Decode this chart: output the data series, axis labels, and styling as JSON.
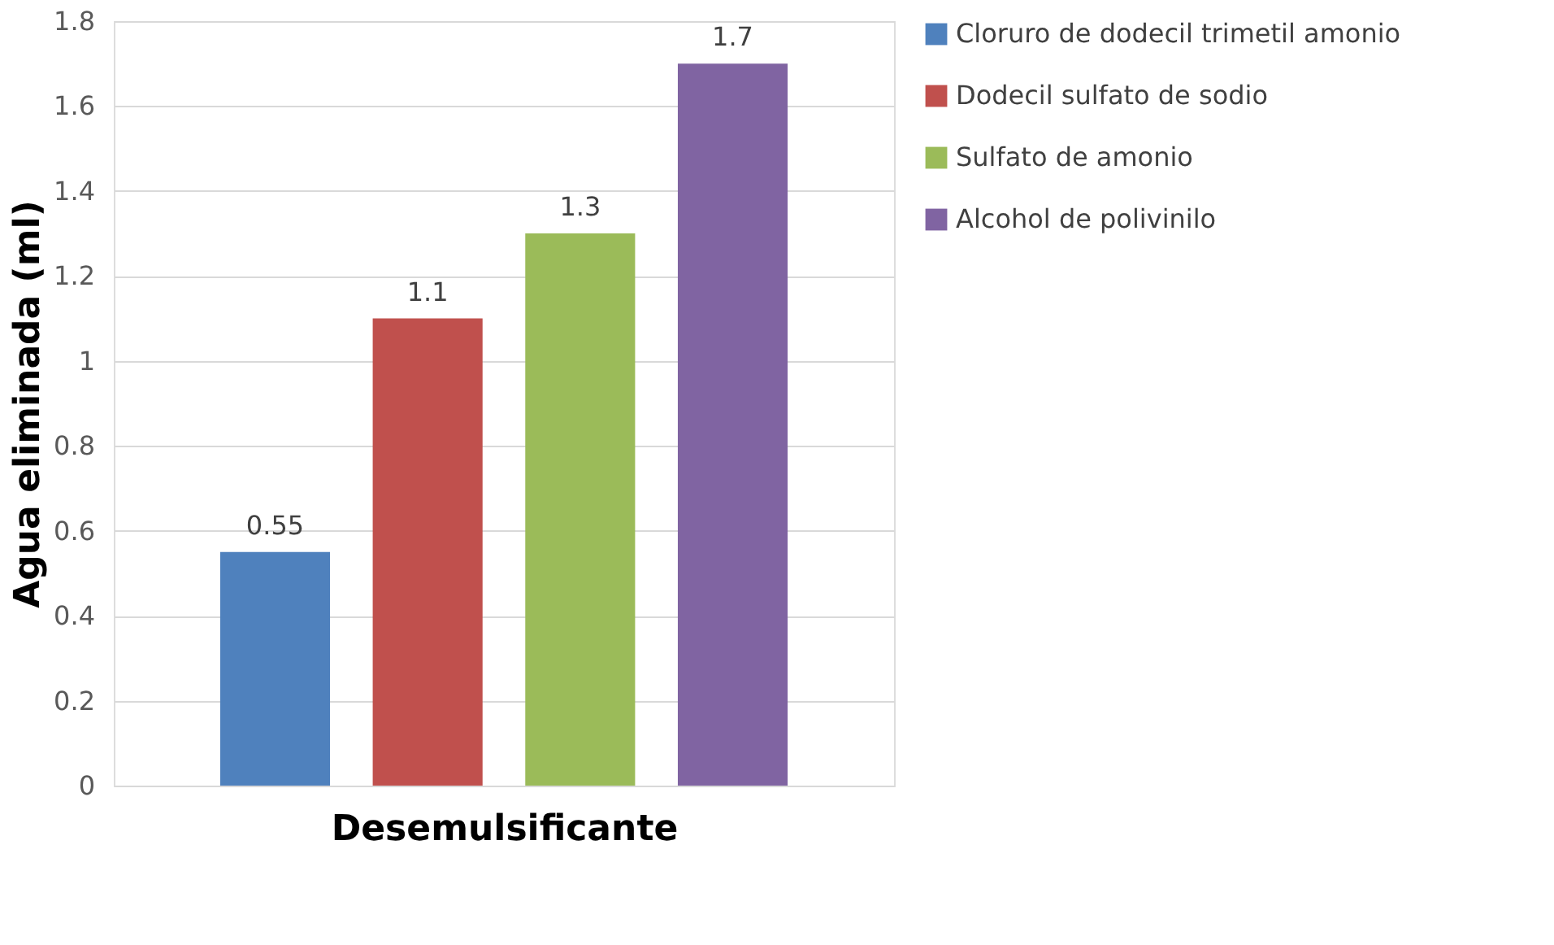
{
  "chart_data": {
    "type": "bar",
    "xlabel": "Desemulsificante",
    "ylabel": "Agua eliminada (ml)",
    "categories": [
      null
    ],
    "series": [
      {
        "name": "Cloruro de dodecil trimetil amonio",
        "color": "#4f81bd",
        "values": [
          0.55
        ]
      },
      {
        "name": "Dodecil sulfato de sodio",
        "color": "#c0504d",
        "values": [
          1.1
        ]
      },
      {
        "name": "Sulfato de amonio",
        "color": "#9bbb59",
        "values": [
          1.3
        ]
      },
      {
        "name": "Alcohol de polivinilo",
        "color": "#8064a2",
        "values": [
          1.7
        ]
      }
    ],
    "ylim": [
      0,
      1.8
    ],
    "yticks": [
      0,
      0.2,
      0.4,
      0.6,
      0.8,
      1,
      1.2,
      1.4,
      1.6,
      1.8
    ],
    "grid": "y",
    "legend": "right",
    "data_labels": true
  }
}
